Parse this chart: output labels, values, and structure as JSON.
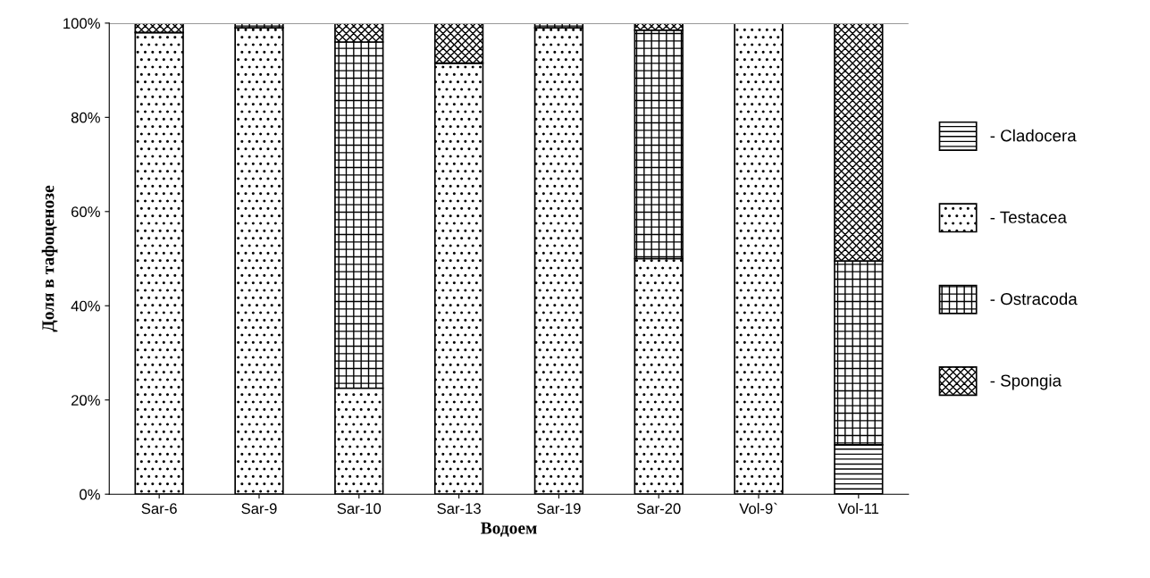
{
  "chart_data": {
    "type": "bar",
    "stacked": true,
    "xlabel": "Водоем",
    "ylabel": "Доля в тафоценозе",
    "categories": [
      "Sar-6",
      "Sar-9",
      "Sar-10",
      "Sar-13",
      "Sar-19",
      "Sar-20",
      "Vol-9`",
      "Vol-11"
    ],
    "series": [
      {
        "name": "- Cladocera",
        "color": "#000000",
        "values": [
          0,
          0,
          0,
          0,
          0,
          0,
          0,
          10.5
        ]
      },
      {
        "name": "- Testacea",
        "color": "#000000",
        "values": [
          98,
          99,
          22.5,
          91.5,
          99,
          50,
          100,
          0
        ]
      },
      {
        "name": "- Ostracoda",
        "color": "#000000",
        "values": [
          0,
          1,
          73.5,
          0,
          1,
          48.5,
          0,
          39
        ]
      },
      {
        "name": "- Spongia",
        "color": "#000000",
        "values": [
          2,
          0,
          4,
          8.5,
          0,
          1.5,
          0,
          50.5
        ]
      }
    ],
    "ylim": [
      0,
      100
    ],
    "yticks": [
      {
        "value": 0,
        "label": "0%"
      },
      {
        "value": 20,
        "label": "20%"
      },
      {
        "value": 40,
        "label": "40%"
      },
      {
        "value": 60,
        "label": "60%"
      },
      {
        "value": 80,
        "label": "80%"
      },
      {
        "value": 100,
        "label": "100%"
      }
    ],
    "grid": false,
    "legend": "right"
  }
}
